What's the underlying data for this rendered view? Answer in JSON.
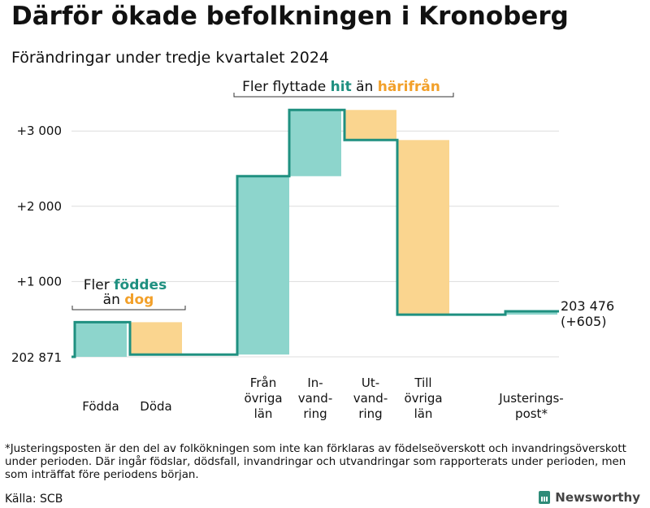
{
  "title": "Därför ökade befolkningen i Kronoberg",
  "subtitle": "Förändringar under tredje kvartalet 2024",
  "colors": {
    "increase": "#8dd5cc",
    "decrease": "#fad58f",
    "line": "#1f9080",
    "teal_text": "#1f9080",
    "orange_text": "#f2a02a",
    "grid": "#dddddd"
  },
  "chart_data": {
    "type": "waterfall",
    "base_label": "202 871",
    "ylim": [
      -40,
      3350
    ],
    "yticks": [
      {
        "value": 1000,
        "label": "+1 000"
      },
      {
        "value": 2000,
        "label": "+2 000"
      },
      {
        "value": 3000,
        "label": "+3 000"
      }
    ],
    "steps": [
      {
        "name": "Födda",
        "label_lines": [
          "Födda"
        ],
        "start": 0,
        "end": 460,
        "kind": "increase"
      },
      {
        "name": "Döda",
        "label_lines": [
          "Döda"
        ],
        "start": 460,
        "end": 30,
        "kind": "decrease"
      },
      {
        "name": "Från övriga län",
        "label_lines": [
          "Från",
          "övriga",
          "län"
        ],
        "start": 30,
        "end": 2400,
        "kind": "increase"
      },
      {
        "name": "Invandring",
        "label_lines": [
          "In-",
          "vand-",
          "ring"
        ],
        "start": 2400,
        "end": 3280,
        "kind": "increase"
      },
      {
        "name": "Utvandring",
        "label_lines": [
          "Ut-",
          "vand-",
          "ring"
        ],
        "start": 3280,
        "end": 2880,
        "kind": "decrease"
      },
      {
        "name": "Till övriga län",
        "label_lines": [
          "Till",
          "övriga",
          "län"
        ],
        "start": 2880,
        "end": 560,
        "kind": "decrease"
      },
      {
        "name": "Justeringspost*",
        "label_lines": [
          "Justerings-",
          "post*"
        ],
        "start": 560,
        "end": 605,
        "kind": "increase"
      }
    ],
    "end_label": "203 476",
    "end_change": "(+605)",
    "annotations": {
      "births": {
        "line1_prefix": "Fler ",
        "line1_highlight": "föddes",
        "line2_prefix": "än ",
        "line2_highlight": "dog"
      },
      "migration": {
        "prefix": "Fler flyttade ",
        "highlight1": "hit",
        "middle": " än ",
        "highlight2": "härifrån"
      }
    }
  },
  "footnote": "*Justeringsposten är den del av folkökningen som inte kan förklaras av födelseöverskott och invandringsöverskott under perioden. Där ingår födslar, dödsfall, invandringar och utvandringar som rapporterats under perioden, men som inträffat före periodens början.",
  "source": "Källa: SCB",
  "brand": "Newsworthy"
}
